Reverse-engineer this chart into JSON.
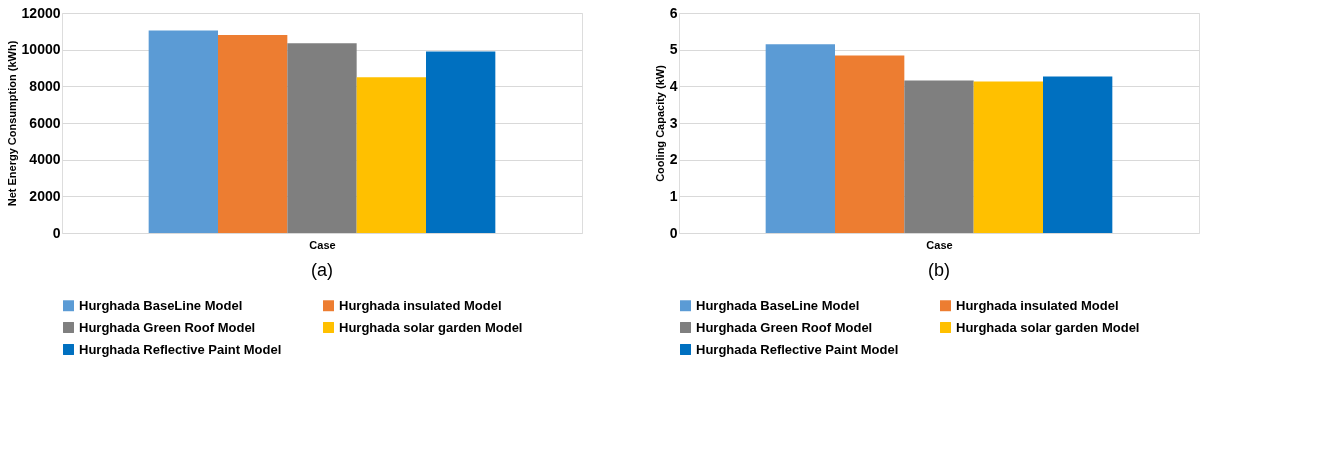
{
  "chart_data": [
    {
      "type": "bar",
      "xlabel": "Case",
      "ylabel": "Net Energy Consumption (kWh)",
      "categories": [
        null
      ],
      "ylim": [
        0,
        12000
      ],
      "yticks": [
        0,
        2000,
        4000,
        6000,
        8000,
        10000,
        12000
      ],
      "grid": "y",
      "legend": "bottom",
      "annotations": [
        "(a)"
      ],
      "series": [
        {
          "name": "Hurghada BaseLine Model",
          "color": "#5b9bd5",
          "values": [
            11050
          ]
        },
        {
          "name": "Hurghada  insulated Model",
          "color": "#ed7d31",
          "values": [
            10800
          ]
        },
        {
          "name": "Hurghada Green Roof Model",
          "color": "#7f7f7f",
          "values": [
            10350
          ]
        },
        {
          "name": "Hurghada solar garden Model",
          "color": "#ffc000",
          "values": [
            8500
          ]
        },
        {
          "name": "Hurghada Reflective Paint Model",
          "color": "#0070c0",
          "values": [
            9900
          ]
        }
      ]
    },
    {
      "type": "bar",
      "xlabel": "Case",
      "ylabel": "Cooling Capacity (kW)",
      "categories": [
        null
      ],
      "ylim": [
        0,
        6
      ],
      "yticks": [
        0,
        1,
        2,
        3,
        4,
        5,
        6
      ],
      "grid": "y",
      "legend": "bottom",
      "annotations": [
        "(b)"
      ],
      "series": [
        {
          "name": "Hurghada BaseLine Model",
          "color": "#5b9bd5",
          "values": [
            5.15
          ]
        },
        {
          "name": "Hurghada  insulated Model",
          "color": "#ed7d31",
          "values": [
            4.84
          ]
        },
        {
          "name": "Hurghada Green Roof Model",
          "color": "#7f7f7f",
          "values": [
            4.16
          ]
        },
        {
          "name": "Hurghada solar garden Model",
          "color": "#ffc000",
          "values": [
            4.13
          ]
        },
        {
          "name": "Hurghada Reflective Paint Model",
          "color": "#0070c0",
          "values": [
            4.27
          ]
        }
      ]
    }
  ]
}
